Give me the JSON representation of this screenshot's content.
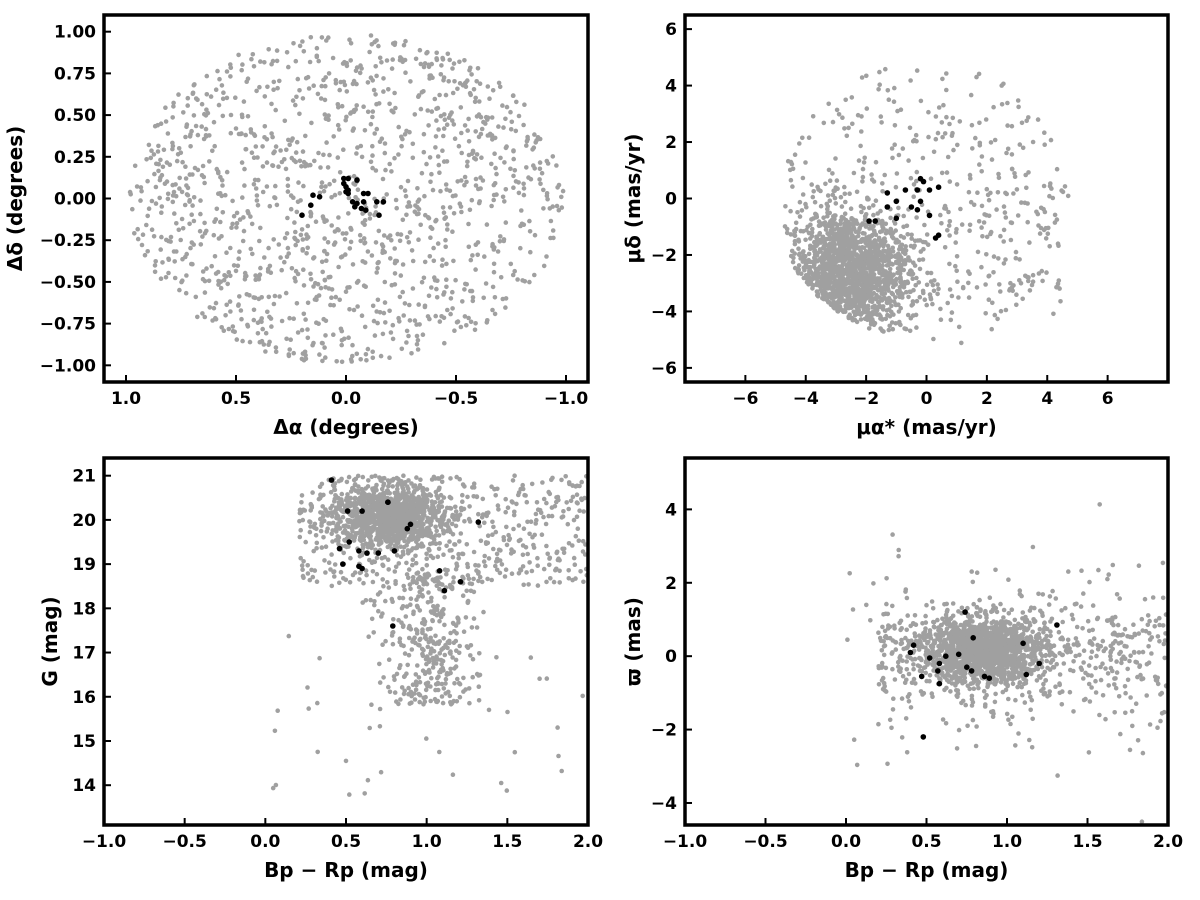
{
  "colors": {
    "field_stars": "#a0a0a0",
    "members": "#000000",
    "frame": "#000000"
  },
  "chart_data": [
    {
      "type": "scatter",
      "xlabel": "Δα (degrees)",
      "ylabel": "Δδ (degrees)",
      "xlim": [
        1.1,
        -1.1
      ],
      "ylim": [
        -1.1,
        1.1
      ],
      "x_ticks": [
        "1.0",
        "0.5",
        "0.0",
        "−0.5",
        "−1.0"
      ],
      "y_ticks": [
        "−1.00",
        "−0.75",
        "−0.50",
        "−0.25",
        "0.00",
        "0.25",
        "0.50",
        "0.75",
        "1.00"
      ],
      "grid": false,
      "field_distribution": "uniform within circle of radius 1 degree centered at (0, 0)",
      "series": [
        {
          "values": [
            [
              -0.05,
              0.11
            ],
            [
              -0.01,
              0.12
            ],
            [
              0.01,
              0.12
            ],
            [
              0.01,
              0.09
            ],
            [
              0.0,
              0.07
            ],
            [
              -0.01,
              0.05
            ],
            [
              0.0,
              0.04
            ],
            [
              -0.01,
              0.03
            ],
            [
              -0.08,
              0.03
            ],
            [
              -0.1,
              0.03
            ],
            [
              -0.03,
              -0.02
            ],
            [
              -0.05,
              -0.03
            ],
            [
              -0.08,
              -0.02
            ],
            [
              -0.04,
              -0.05
            ],
            [
              -0.07,
              -0.06
            ],
            [
              -0.09,
              -0.07
            ],
            [
              -0.14,
              -0.02
            ],
            [
              -0.17,
              -0.02
            ],
            [
              -0.15,
              -0.1
            ],
            [
              0.15,
              0.02
            ],
            [
              0.16,
              -0.04
            ],
            [
              0.2,
              -0.1
            ],
            [
              0.12,
              0.01
            ]
          ]
        }
      ]
    },
    {
      "type": "scatter",
      "xlabel": "μα* (mas/yr)",
      "ylabel": "μδ (mas/yr)",
      "xlim": [
        -8,
        8
      ],
      "ylim": [
        -6.5,
        6.5
      ],
      "x_ticks": [
        "−6",
        "−4",
        "−2",
        "0",
        "2",
        "4",
        "6"
      ],
      "y_ticks": [
        "−6",
        "−4",
        "−2",
        "0",
        "2",
        "4",
        "6"
      ],
      "grid": false,
      "field_distribution": "dense clump near (-2.5, -2.5) spreading to a disk of radius ~5 about the origin, sparse tail toward (4, -2)",
      "series": [
        {
          "values": [
            [
              -1.9,
              -0.8
            ],
            [
              -1.7,
              -0.8
            ],
            [
              -1.3,
              0.2
            ],
            [
              -1.0,
              -0.1
            ],
            [
              -1.0,
              -0.7
            ],
            [
              -1.3,
              -0.3
            ],
            [
              -0.7,
              0.3
            ],
            [
              -0.5,
              -0.3
            ],
            [
              -0.3,
              -0.4
            ],
            [
              -0.3,
              0.3
            ],
            [
              -0.2,
              -0.1
            ],
            [
              -0.2,
              0.7
            ],
            [
              -0.1,
              0.6
            ],
            [
              0.1,
              -0.6
            ],
            [
              0.1,
              0.3
            ],
            [
              0.4,
              0.4
            ],
            [
              0.4,
              -1.3
            ],
            [
              0.3,
              -1.4
            ]
          ]
        }
      ]
    },
    {
      "type": "scatter",
      "xlabel": "Bp − Rp (mag)",
      "ylabel": "G (mag)",
      "xlim": [
        -1.0,
        2.0
      ],
      "ylim": [
        13.1,
        21.4
      ],
      "x_ticks": [
        "−1.0",
        "−0.5",
        "0.0",
        "0.5",
        "1.0",
        "1.5",
        "2.0"
      ],
      "y_ticks": [
        "14",
        "15",
        "16",
        "17",
        "18",
        "19",
        "20",
        "21"
      ],
      "grid": false,
      "field_distribution": "dense concentration near (0.7, 20.0) with a sequence extending down to G≈16 around color 1.0",
      "series": [
        {
          "values": [
            [
              0.41,
              20.9
            ],
            [
              0.51,
              20.2
            ],
            [
              0.6,
              20.2
            ],
            [
              0.76,
              20.4
            ],
            [
              0.76,
              20.4
            ],
            [
              0.88,
              19.8
            ],
            [
              0.9,
              19.9
            ],
            [
              1.32,
              19.95
            ],
            [
              0.46,
              19.35
            ],
            [
              0.52,
              19.5
            ],
            [
              0.58,
              19.3
            ],
            [
              0.63,
              19.25
            ],
            [
              0.7,
              19.25
            ],
            [
              0.8,
              19.3
            ],
            [
              0.48,
              19.0
            ],
            [
              0.58,
              18.95
            ],
            [
              0.6,
              18.9
            ],
            [
              1.08,
              18.85
            ],
            [
              1.21,
              18.6
            ],
            [
              1.11,
              18.4
            ],
            [
              0.79,
              17.6
            ]
          ]
        }
      ]
    },
    {
      "type": "scatter",
      "xlabel": "Bp − Rp (mag)",
      "ylabel": "ϖ (mas)",
      "xlim": [
        -1.0,
        2.0
      ],
      "ylim": [
        -4.6,
        5.4
      ],
      "x_ticks": [
        "−1.0",
        "−0.5",
        "0.0",
        "0.5",
        "1.0",
        "1.5",
        "2.0"
      ],
      "y_ticks": [
        "−4",
        "−2",
        "0",
        "2",
        "4"
      ],
      "grid": false,
      "field_distribution": "dense band around ϖ≈0 between color 0.4 and 1.3, scatter up to ±4",
      "series": [
        {
          "values": [
            [
              0.74,
              1.2
            ],
            [
              0.79,
              0.5
            ],
            [
              1.31,
              0.85
            ],
            [
              1.1,
              0.35
            ],
            [
              0.42,
              0.3
            ],
            [
              0.4,
              0.1
            ],
            [
              0.62,
              0.0
            ],
            [
              0.52,
              -0.05
            ],
            [
              0.58,
              -0.2
            ],
            [
              0.7,
              0.05
            ],
            [
              0.75,
              -0.3
            ],
            [
              0.78,
              -0.4
            ],
            [
              0.57,
              -0.4
            ],
            [
              0.47,
              -0.55
            ],
            [
              0.58,
              -0.75
            ],
            [
              0.86,
              -0.55
            ],
            [
              0.89,
              -0.6
            ],
            [
              1.2,
              -0.2
            ],
            [
              1.12,
              -0.5
            ],
            [
              0.48,
              -2.2
            ]
          ]
        }
      ]
    }
  ]
}
